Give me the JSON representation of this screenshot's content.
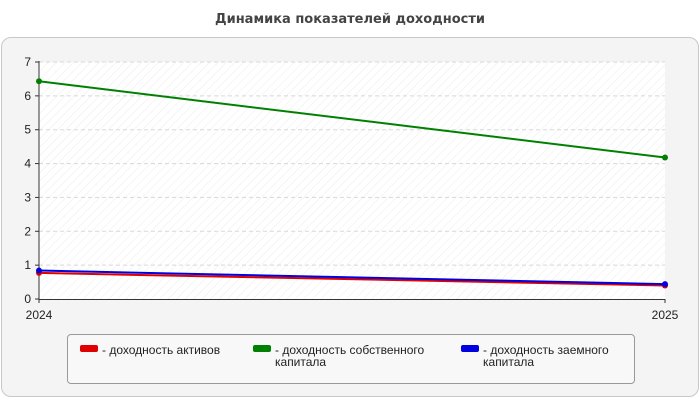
{
  "chart_data": {
    "type": "line",
    "title": "Динамика показателей доходности",
    "x": [
      "2024",
      "2025"
    ],
    "ylim": [
      0,
      7
    ],
    "yticks": [
      "0",
      "1",
      "2",
      "3",
      "4",
      "5",
      "6",
      "7"
    ],
    "grid": true,
    "legend_position": "bottom",
    "series": [
      {
        "name": "- доходность активов",
        "color": "#e00000",
        "values": [
          0.77,
          0.4
        ]
      },
      {
        "name": "- доходность собственного капитала",
        "color": "#008000",
        "values": [
          6.43,
          4.18
        ]
      },
      {
        "name": "- доходность заемного капитала",
        "color": "#0000e0",
        "values": [
          0.84,
          0.44
        ]
      }
    ]
  }
}
